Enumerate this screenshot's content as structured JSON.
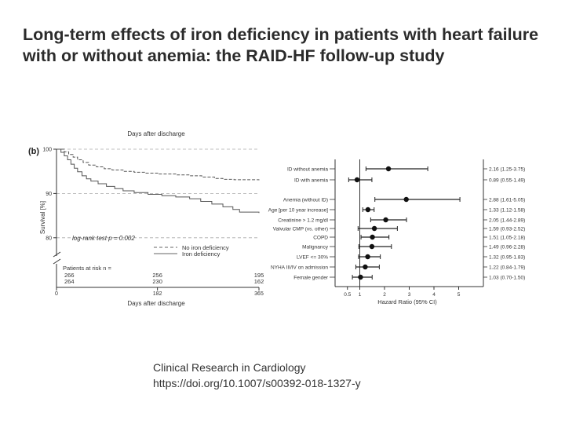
{
  "title": {
    "line1": "Long-term effects of iron deficiency in patients with heart failure",
    "line2": "with or without anemia: the RAID-HF follow-up study"
  },
  "citation": {
    "journal": "Clinical Research in Cardiology",
    "doi": "https://doi.org/10.1007/s00392-018-1327-y"
  },
  "colors": {
    "text": "#2b2b2b",
    "axis": "#333333",
    "grid": "#aaaaaa"
  },
  "chart_data": [
    {
      "type": "line",
      "panel_label": "(b)",
      "title": "Days after discharge",
      "xlabel": "Days after discharge",
      "ylabel": "Survival [%]",
      "xlim": [
        0,
        365
      ],
      "ylim": [
        75,
        100
      ],
      "xticks": [
        0,
        182,
        365
      ],
      "xtick_labels": [
        "0",
        "182",
        "365"
      ],
      "yticks": [
        80,
        90,
        100
      ],
      "ytick_labels": [
        "80",
        "90",
        "100"
      ],
      "axis_break": true,
      "grid": true,
      "annotation": "log-rank test p = 0.002",
      "series": [
        {
          "name": "No iron deficiency",
          "style": "dashed",
          "points": [
            [
              0,
              100
            ],
            [
              14,
              99.4
            ],
            [
              22,
              98.8
            ],
            [
              30,
              98.2
            ],
            [
              38,
              97.6
            ],
            [
              48,
              97
            ],
            [
              58,
              96.4
            ],
            [
              72,
              96
            ],
            [
              86,
              95.6
            ],
            [
              100,
              95.3
            ],
            [
              120,
              95
            ],
            [
              140,
              94.8
            ],
            [
              160,
              94.6
            ],
            [
              185,
              94.4
            ],
            [
              215,
              94.2
            ],
            [
              240,
              94
            ],
            [
              262,
              93.7
            ],
            [
              285,
              93.4
            ],
            [
              300,
              93.2
            ],
            [
              320,
              93.1
            ],
            [
              365,
              93
            ]
          ]
        },
        {
          "name": "Iron deficiency",
          "style": "solid",
          "points": [
            [
              0,
              100
            ],
            [
              8,
              99.3
            ],
            [
              14,
              98.5
            ],
            [
              20,
              97.6
            ],
            [
              26,
              96.6
            ],
            [
              32,
              95.7
            ],
            [
              38,
              94.9
            ],
            [
              46,
              94
            ],
            [
              54,
              93.3
            ],
            [
              62,
              92.8
            ],
            [
              75,
              92.2
            ],
            [
              90,
              91.6
            ],
            [
              105,
              91.1
            ],
            [
              120,
              90.6
            ],
            [
              140,
              90.2
            ],
            [
              165,
              89.8
            ],
            [
              190,
              89.5
            ],
            [
              215,
              89.2
            ],
            [
              240,
              88.8
            ],
            [
              260,
              88.2
            ],
            [
              280,
              87.6
            ],
            [
              300,
              87
            ],
            [
              318,
              86.4
            ],
            [
              330,
              85.8
            ],
            [
              365,
              85.6
            ]
          ]
        }
      ],
      "at_risk": {
        "label": "Patients at risk n =",
        "times": [
          0,
          182,
          365
        ],
        "rows": [
          {
            "name": "No iron deficiency",
            "values": [
              "266",
              "256",
              "195"
            ]
          },
          {
            "name": "Iron deficiency",
            "values": [
              "264",
              "230",
              "162"
            ]
          }
        ]
      }
    },
    {
      "type": "forest",
      "xlabel": "Hazard Ratio (95% CI)",
      "xlim": [
        0,
        6
      ],
      "reference_line": 1,
      "xticks": [
        0.5,
        1,
        2,
        3,
        4,
        5
      ],
      "xtick_labels": [
        "0.5",
        "1",
        "2",
        "3",
        "4",
        "5"
      ],
      "rows": [
        {
          "label": "ID without anemia",
          "hr": 2.16,
          "lo": 1.25,
          "hi": 3.75,
          "text": "2.16 (1.25-3.75)"
        },
        {
          "label": "ID with anemia",
          "hr": 0.89,
          "lo": 0.55,
          "hi": 1.49,
          "text": "0.89 (0.55-1.49)"
        },
        {
          "label": "Anemia (without ID)",
          "hr": 2.88,
          "lo": 1.61,
          "hi": 5.05,
          "text": "2.88 (1.61-5.05)"
        },
        {
          "label": "Age [per 10 year increase]",
          "hr": 1.33,
          "lo": 1.12,
          "hi": 1.58,
          "text": "1.33 (1.12-1.58)"
        },
        {
          "label": "Creatinine > 1.2 mg/dl",
          "hr": 2.05,
          "lo": 1.44,
          "hi": 2.89,
          "text": "2.05 (1.44-2.89)"
        },
        {
          "label": "Valvular CMP (vs. other)",
          "hr": 1.59,
          "lo": 0.93,
          "hi": 2.52,
          "text": "1.59 (0.93-2.52)"
        },
        {
          "label": "COPD",
          "hr": 1.51,
          "lo": 1.05,
          "hi": 2.18,
          "text": "1.51 (1.05-2.18)"
        },
        {
          "label": "Malignancy",
          "hr": 1.49,
          "lo": 0.96,
          "hi": 2.28,
          "text": "1.49 (0.96-2.28)"
        },
        {
          "label": "LVEF <= 30%",
          "hr": 1.32,
          "lo": 0.95,
          "hi": 1.83,
          "text": "1.32 (0.95-1.83)"
        },
        {
          "label": "NYHA III/IV on admission",
          "hr": 1.22,
          "lo": 0.84,
          "hi": 1.79,
          "text": "1.22 (0.84-1.79)"
        },
        {
          "label": "Female gender",
          "hr": 1.03,
          "lo": 0.7,
          "hi": 1.5,
          "text": "1.03 (0.70-1.50)"
        }
      ]
    }
  ]
}
